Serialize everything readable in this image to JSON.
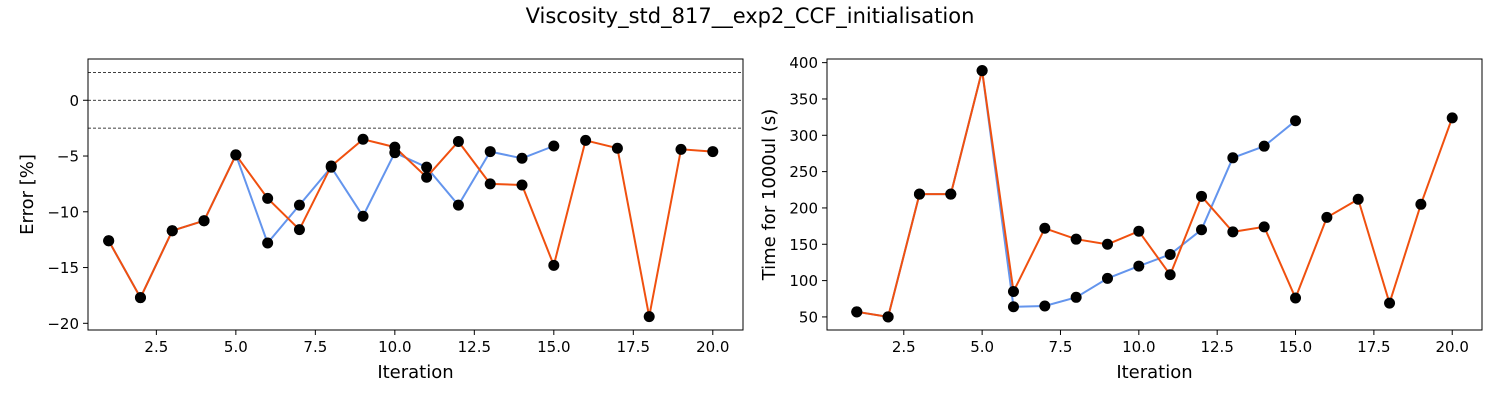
{
  "figure": {
    "title": "Viscosity_std_817__exp2_CCF_initialisation"
  },
  "colors": {
    "orange": "#f0500f",
    "blue": "#6495ed",
    "marker": "#000000"
  },
  "chart_data": [
    {
      "type": "line",
      "title": "",
      "xlabel": "Iteration",
      "ylabel": "Error [%]",
      "xlim": [
        0.35,
        20.95
      ],
      "ylim": [
        -20.6,
        3.7
      ],
      "xticks": [
        2.5,
        5.0,
        7.5,
        10.0,
        12.5,
        15.0,
        17.5,
        20.0
      ],
      "xtick_labels": [
        "2.5",
        "5.0",
        "7.5",
        "10.0",
        "12.5",
        "15.0",
        "17.5",
        "20.0"
      ],
      "yticks": [
        0,
        -5,
        -10,
        -15,
        -20
      ],
      "ytick_labels": [
        "0",
        "−5",
        "−10",
        "−15",
        "−20"
      ],
      "hlines": [
        2.5,
        0,
        -2.5
      ],
      "grid": false,
      "series": [
        {
          "color": "#6495ed",
          "x": [
            1,
            2,
            3,
            4,
            5,
            6,
            7,
            8,
            9,
            10,
            11,
            12,
            13,
            14,
            15
          ],
          "y": [
            -12.6,
            -17.7,
            -11.7,
            -10.8,
            -4.9,
            -12.8,
            -9.4,
            -6.0,
            -10.4,
            -4.7,
            -6.0,
            -9.4,
            -4.6,
            -5.2,
            -4.1
          ]
        },
        {
          "color": "#f0500f",
          "x": [
            1,
            2,
            3,
            4,
            5,
            6,
            7,
            8,
            9,
            10,
            11,
            12,
            13,
            14,
            15,
            16,
            17,
            18,
            19,
            20
          ],
          "y": [
            -12.6,
            -17.7,
            -11.7,
            -10.8,
            -4.9,
            -8.8,
            -11.6,
            -5.9,
            -3.5,
            -4.2,
            -6.9,
            -3.7,
            -7.5,
            -7.6,
            -14.8,
            -3.6,
            -4.3,
            -19.4,
            -4.4,
            -4.6
          ]
        }
      ]
    },
    {
      "type": "line",
      "title": "",
      "xlabel": "Iteration",
      "ylabel": "Time for 1000ul (s)",
      "xlim": [
        0.05,
        20.95
      ],
      "ylim": [
        32,
        405
      ],
      "xticks": [
        2.5,
        5.0,
        7.5,
        10.0,
        12.5,
        15.0,
        17.5,
        20.0
      ],
      "xtick_labels": [
        "2.5",
        "5.0",
        "7.5",
        "10.0",
        "12.5",
        "15.0",
        "17.5",
        "20.0"
      ],
      "yticks": [
        50,
        100,
        150,
        200,
        250,
        300,
        350,
        400
      ],
      "ytick_labels": [
        "50",
        "100",
        "150",
        "200",
        "250",
        "300",
        "350",
        "400"
      ],
      "grid": false,
      "series": [
        {
          "color": "#6495ed",
          "x": [
            1,
            2,
            3,
            4,
            5,
            6,
            7,
            8,
            9,
            10,
            11,
            12,
            13,
            14,
            15
          ],
          "y": [
            57,
            50,
            219,
            219,
            389,
            64,
            65,
            77,
            103,
            120,
            136,
            170,
            269,
            285,
            320
          ]
        },
        {
          "color": "#f0500f",
          "x": [
            1,
            2,
            3,
            4,
            5,
            6,
            7,
            8,
            9,
            10,
            11,
            12,
            13,
            14,
            15,
            16,
            17,
            18,
            19,
            20
          ],
          "y": [
            57,
            50,
            219,
            219,
            389,
            85,
            172,
            157,
            150,
            168,
            108,
            216,
            167,
            174,
            76,
            187,
            212,
            69,
            205,
            324
          ]
        }
      ]
    }
  ]
}
